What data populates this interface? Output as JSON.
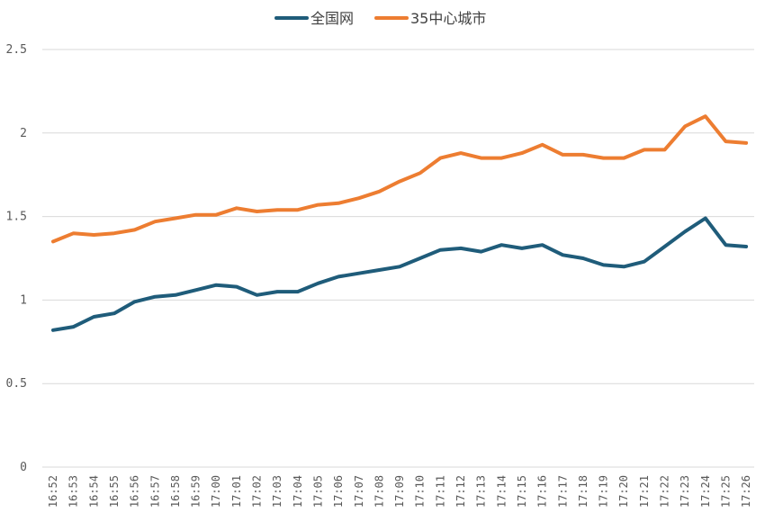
{
  "chart_data": {
    "type": "line",
    "title": "",
    "xlabel": "",
    "ylabel": "",
    "ylim": [
      0,
      2.5
    ],
    "yticks": [
      "0",
      "0.5",
      "1",
      "1.5",
      "2",
      "2.5"
    ],
    "grid": true,
    "legend_position": "top",
    "categories": [
      "16:52",
      "16:53",
      "16:54",
      "16:55",
      "16:56",
      "16:57",
      "16:58",
      "16:59",
      "17:00",
      "17:01",
      "17:02",
      "17:03",
      "17:04",
      "17:05",
      "17:06",
      "17:07",
      "17:08",
      "17:09",
      "17:10",
      "17:11",
      "17:12",
      "17:13",
      "17:14",
      "17:15",
      "17:16",
      "17:17",
      "17:18",
      "17:19",
      "17:20",
      "17:21",
      "17:22",
      "17:23",
      "17:24",
      "17:25",
      "17:26"
    ],
    "series": [
      {
        "name": "全国网",
        "color": "#1f5c7a",
        "values": [
          0.82,
          0.84,
          0.9,
          0.92,
          0.99,
          1.02,
          1.03,
          1.06,
          1.09,
          1.08,
          1.03,
          1.05,
          1.05,
          1.1,
          1.14,
          1.16,
          1.18,
          1.2,
          1.25,
          1.3,
          1.31,
          1.29,
          1.33,
          1.31,
          1.33,
          1.27,
          1.25,
          1.21,
          1.2,
          1.23,
          1.32,
          1.41,
          1.49,
          1.33,
          1.32
        ]
      },
      {
        "name": "35中心城市",
        "color": "#ed7d31",
        "values": [
          1.35,
          1.4,
          1.39,
          1.4,
          1.42,
          1.47,
          1.49,
          1.51,
          1.51,
          1.55,
          1.53,
          1.54,
          1.54,
          1.57,
          1.58,
          1.61,
          1.65,
          1.71,
          1.76,
          1.85,
          1.88,
          1.85,
          1.85,
          1.88,
          1.93,
          1.87,
          1.87,
          1.85,
          1.85,
          1.9,
          1.9,
          2.04,
          2.1,
          1.95,
          1.94
        ]
      }
    ]
  }
}
